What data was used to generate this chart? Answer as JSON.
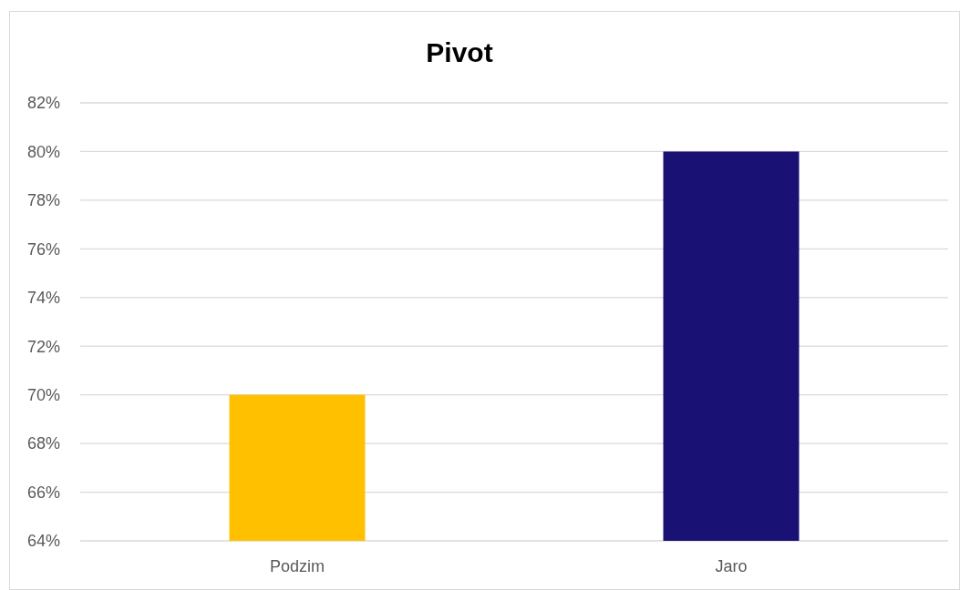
{
  "chart_data": {
    "type": "bar",
    "title": "Pivot",
    "categories": [
      "Podzim",
      "Jaro"
    ],
    "values": [
      70,
      80
    ],
    "colors": [
      "#ffc000",
      "#1a1175"
    ],
    "ylim": [
      64,
      82
    ],
    "yticks": [
      {
        "value": 64,
        "label": "64%"
      },
      {
        "value": 66,
        "label": "66%"
      },
      {
        "value": 68,
        "label": "68%"
      },
      {
        "value": 70,
        "label": "70%"
      },
      {
        "value": 72,
        "label": "72%"
      },
      {
        "value": 74,
        "label": "74%"
      },
      {
        "value": 76,
        "label": "76%"
      },
      {
        "value": 78,
        "label": "78%"
      },
      {
        "value": 80,
        "label": "80%"
      },
      {
        "value": 82,
        "label": "82%"
      }
    ],
    "grid": "y"
  }
}
